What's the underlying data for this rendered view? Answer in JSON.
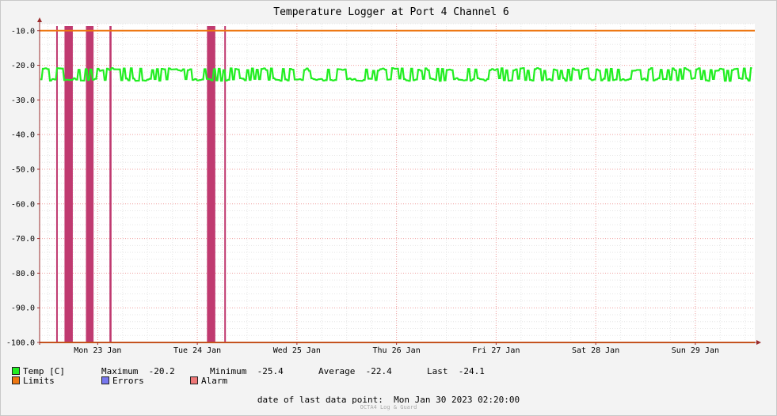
{
  "chart_data": {
    "type": "line",
    "title": "Temperature Logger at Port 4 Channel 6",
    "ylim": [
      -100.0,
      -8.0
    ],
    "y_ticks": [
      "-10.0",
      "-20.0",
      "-30.0",
      "-40.0",
      "-50.0",
      "-60.0",
      "-70.0",
      "-80.0",
      "-90.0",
      "-100.0"
    ],
    "x_range": [
      "2023-01-22 22:00",
      "2023-01-30 02:20"
    ],
    "x_ticks": [
      {
        "label": "Mon 23 Jan",
        "date": "2023-01-23 12:00"
      },
      {
        "label": "Tue 24 Jan",
        "date": "2023-01-24 12:00"
      },
      {
        "label": "Wed 25 Jan",
        "date": "2023-01-25 12:00"
      },
      {
        "label": "Thu 26 Jan",
        "date": "2023-01-26 12:00"
      },
      {
        "label": "Fri 27 Jan",
        "date": "2023-01-27 12:00"
      },
      {
        "label": "Sat 28 Jan",
        "date": "2023-01-28 12:00"
      },
      {
        "label": "Sun 29 Jan",
        "date": "2023-01-29 12:00"
      }
    ],
    "grid": true,
    "series": [
      {
        "name": "Temp [C]",
        "color": "#22ee22",
        "band": [
          -24.5,
          -20.8
        ],
        "mean": -22.4
      },
      {
        "name": "Limits",
        "color": "#ee7711",
        "values": [
          -10.0,
          -100.0
        ]
      },
      {
        "name": "Errors",
        "color": "#7777ee"
      },
      {
        "name": "Alarm",
        "color": "#ee7777",
        "fill_color": "#c03a70",
        "intervals": [
          [
            "2023-01-23 02:00",
            "2023-01-23 02:10"
          ],
          [
            "2023-01-23 04:00",
            "2023-01-23 06:00"
          ],
          [
            "2023-01-23 09:10",
            "2023-01-23 11:00"
          ],
          [
            "2023-01-23 14:50",
            "2023-01-23 15:20"
          ],
          [
            "2023-01-24 14:20",
            "2023-01-24 16:20"
          ],
          [
            "2023-01-24 18:30",
            "2023-01-24 18:40"
          ]
        ]
      }
    ],
    "stats": {
      "maximum_label": "Maximum",
      "maximum": "-20.2",
      "minimum_label": "Minimum",
      "minimum": "-25.4",
      "average_label": "Average",
      "average": "-22.4",
      "last_label": "Last",
      "last": "-24.1"
    },
    "last_point_label": "date of last data point:",
    "last_point": "Mon Jan 30 2023 02:20:00",
    "watermark": "OCTA4 Log & Guard"
  },
  "colors": {
    "grid": "#f0a0a0",
    "axis": "#9b2c2c",
    "background": "#ffffff",
    "page": "#f3f3f3"
  }
}
